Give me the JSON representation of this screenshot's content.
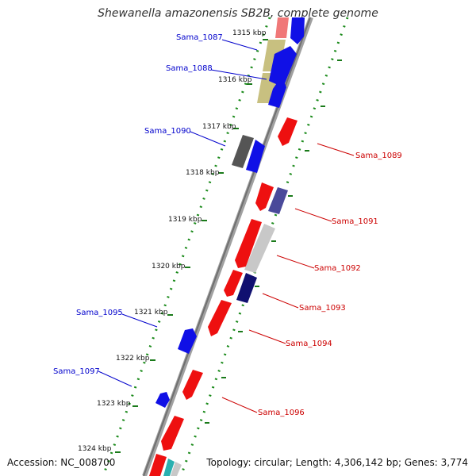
{
  "title": "Shewanella amazonensis SB2B, complete genome",
  "footer": {
    "accession": "Accession: NC_008700",
    "summary": "Topology: circular; Length: 4,306,142 bp; Genes: 3,774"
  },
  "colors": {
    "backbone": "#8a8a8a",
    "tick": "#1a7a1a",
    "forward_label": "#0000cc",
    "reverse_label": "#cc0000"
  },
  "ticks": [
    {
      "label": "1315 kbp"
    },
    {
      "label": "1316 kbp"
    },
    {
      "label": "1317 kbp"
    },
    {
      "label": "1318 kbp"
    },
    {
      "label": "1319 kbp"
    },
    {
      "label": "1320 kbp"
    },
    {
      "label": "1321 kbp"
    },
    {
      "label": "1322 kbp"
    },
    {
      "label": "1323 kbp"
    },
    {
      "label": "1324 kbp"
    }
  ],
  "genes": {
    "forward": [
      {
        "name": "Sama_1087"
      },
      {
        "name": "Sama_1088"
      },
      {
        "name": "Sama_1090"
      },
      {
        "name": "Sama_1095"
      },
      {
        "name": "Sama_1097"
      }
    ],
    "reverse": [
      {
        "name": "Sama_1089"
      },
      {
        "name": "Sama_1091"
      },
      {
        "name": "Sama_1092"
      },
      {
        "name": "Sama_1093"
      },
      {
        "name": "Sama_1094"
      },
      {
        "name": "Sama_1096"
      }
    ]
  }
}
